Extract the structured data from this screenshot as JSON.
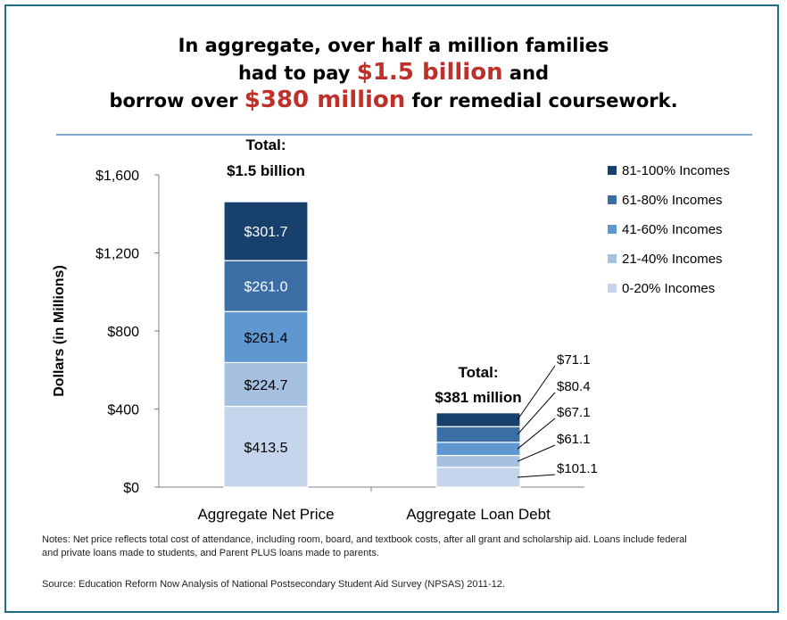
{
  "headline": {
    "line1": "In aggregate, over half a million families",
    "line2_pre": "had to pay ",
    "line2_highlight": "$1.5 billion",
    "line2_post": " and",
    "line3_pre": "borrow over ",
    "line3_highlight": "$380 million",
    "line3_post": " for remedial coursework."
  },
  "colors": {
    "highlight": "#c0302b",
    "border": "#1f6e8c",
    "rule": "#7fa7c9"
  },
  "chart_data": {
    "type": "bar",
    "stacked": true,
    "categories": [
      "Aggregate Net Price",
      "Aggregate Loan Debt"
    ],
    "ylabel": "Dollars (in Millions)",
    "ylim": [
      0,
      1600
    ],
    "yticks": [
      0,
      400,
      800,
      1200,
      1600
    ],
    "ytick_labels": [
      "$0",
      "$400",
      "$800",
      "$1,200",
      "$1,600"
    ],
    "legend_position": "top-right",
    "series": [
      {
        "name": "0-20% Incomes",
        "color": "#c5d6ec",
        "values": [
          413.5,
          101.1
        ],
        "labels": [
          "$413.5",
          "$101.1"
        ]
      },
      {
        "name": "21-40% Incomes",
        "color": "#a6c0e2",
        "values": [
          224.7,
          61.1
        ],
        "labels": [
          "$224.7",
          "$61.1"
        ]
      },
      {
        "name": "41-60% Incomes",
        "color": "#5f97d0",
        "values": [
          261.4,
          67.1
        ],
        "labels": [
          "$261.4",
          "$67.1"
        ]
      },
      {
        "name": "61-80% Incomes",
        "color": "#3a6ea5",
        "values": [
          261.0,
          80.4
        ],
        "labels": [
          "$261.0",
          "$80.4"
        ]
      },
      {
        "name": "81-100% Incomes",
        "color": "#17406d",
        "values": [
          301.7,
          71.1
        ],
        "labels": [
          "$301.7",
          "$71.1"
        ]
      }
    ],
    "totals": [
      {
        "line1": "Total:",
        "line2": "$1.5 billion"
      },
      {
        "line1": "Total:",
        "line2": "$381 million"
      }
    ]
  },
  "notes": {
    "line1": "Notes: Net price reflects total cost of attendance, including room, board, and textbook costs, after all grant and scholarship aid. Loans include federal",
    "line2": "and private loans made to students, and Parent PLUS loans made to parents.",
    "source": "Source: Education Reform Now Analysis of National Postsecondary Student Aid Survey (NPSAS) 2011-12."
  }
}
